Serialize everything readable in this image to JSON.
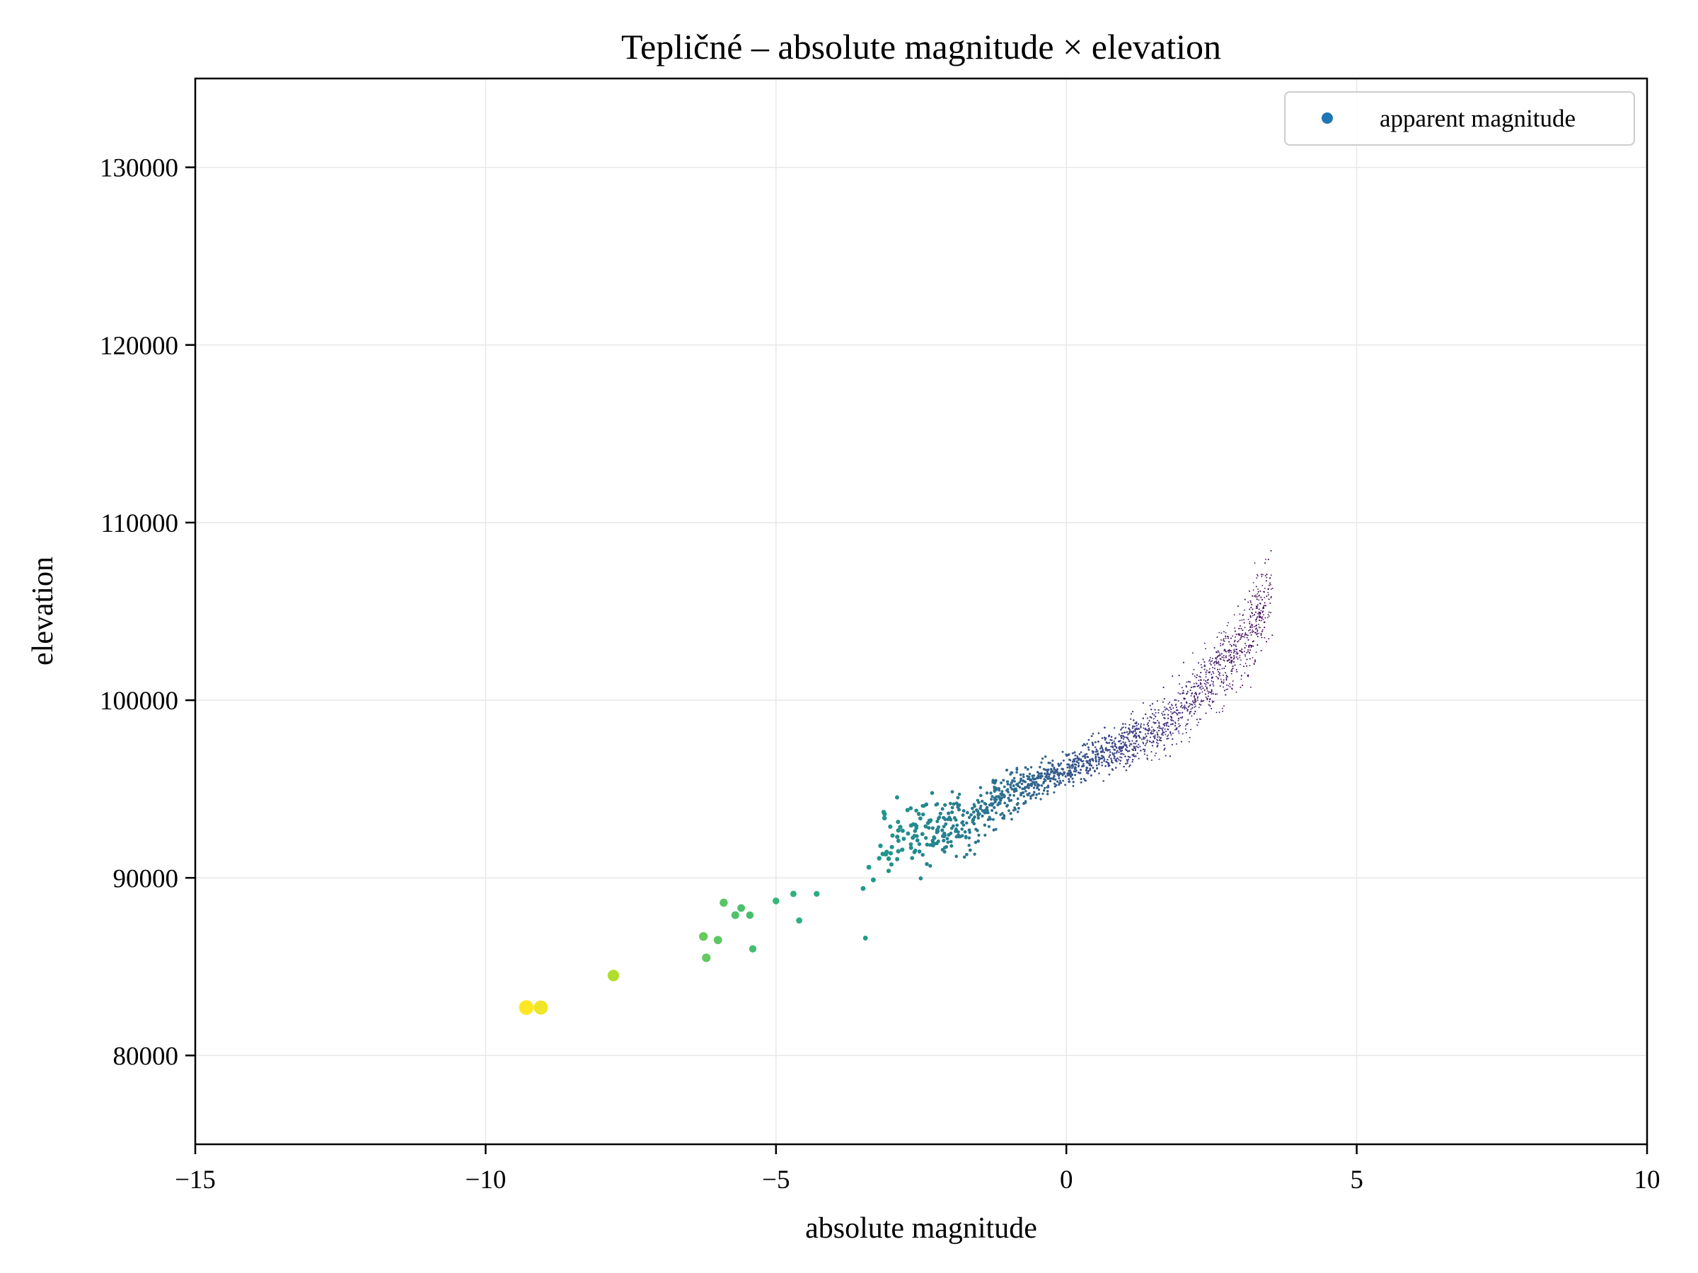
{
  "chart_data": {
    "type": "scatter",
    "title": "Tepličné – absolute magnitude × elevation",
    "xlabel": "absolute magnitude",
    "ylabel": "elevation",
    "xlim": [
      -15,
      10
    ],
    "ylim": [
      75000,
      135000
    ],
    "x_ticks": [
      -15,
      -10,
      -5,
      0,
      5,
      10
    ],
    "x_tick_labels": [
      "−15",
      "−10",
      "−5",
      "0",
      "5",
      "10"
    ],
    "y_ticks": [
      80000,
      90000,
      100000,
      110000,
      120000,
      130000
    ],
    "y_tick_labels": [
      "80000",
      "90000",
      "100000",
      "110000",
      "120000",
      "130000"
    ],
    "grid": true,
    "legend": {
      "position": "top-right",
      "entries": [
        "apparent magnitude"
      ]
    },
    "legend_marker_color": "#1f77b4",
    "colormap": "viridis",
    "color_encoding": "apparent magnitude (brighter objects larger and yellower)",
    "series": [
      {
        "name": "apparent magnitude",
        "highlighted_points": [
          {
            "x": -9.3,
            "y": 82700
          },
          {
            "x": -9.05,
            "y": 82700
          },
          {
            "x": -7.8,
            "y": 84500
          },
          {
            "x": -6.2,
            "y": 85500
          },
          {
            "x": -6.0,
            "y": 86500
          },
          {
            "x": -6.25,
            "y": 86700
          },
          {
            "x": -5.4,
            "y": 86000
          },
          {
            "x": -5.9,
            "y": 88600
          },
          {
            "x": -5.6,
            "y": 88300
          },
          {
            "x": -5.7,
            "y": 87900
          },
          {
            "x": -5.45,
            "y": 87900
          },
          {
            "x": -5.0,
            "y": 88700
          },
          {
            "x": -4.7,
            "y": 89100
          },
          {
            "x": -4.6,
            "y": 87600
          },
          {
            "x": -4.3,
            "y": 89100
          },
          {
            "x": -3.5,
            "y": 89400
          },
          {
            "x": -3.4,
            "y": 90600
          },
          {
            "x": -3.2,
            "y": 91800
          },
          {
            "x": -2.8,
            "y": 92200
          },
          {
            "x": -2.3,
            "y": 92800
          },
          {
            "x": -1.8,
            "y": 93100
          },
          {
            "x": -1.4,
            "y": 93800
          },
          {
            "x": -0.8,
            "y": 95100
          },
          {
            "x": -0.3,
            "y": 95700
          },
          {
            "x": 0.4,
            "y": 96600
          },
          {
            "x": 1.2,
            "y": 97900
          },
          {
            "x": 1.8,
            "y": 98900
          },
          {
            "x": 2.3,
            "y": 100400
          },
          {
            "x": 2.8,
            "y": 102300
          },
          {
            "x": 3.2,
            "y": 104100
          },
          {
            "x": 3.55,
            "y": 106300
          }
        ],
        "dense_band": {
          "x_range": [
            -3.5,
            3.5
          ],
          "count": 3800,
          "note": "dense cloud following the trend curve"
        }
      }
    ]
  }
}
